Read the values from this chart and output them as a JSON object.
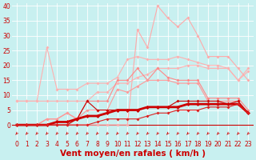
{
  "x": [
    0,
    1,
    2,
    3,
    4,
    5,
    6,
    7,
    8,
    9,
    10,
    11,
    12,
    13,
    14,
    15,
    16,
    17,
    18,
    19,
    20,
    21,
    22,
    23
  ],
  "background_color": "#c8f0f0",
  "grid_color": "#aadddd",
  "xlabel": "Vent moyen/en rafales ( km/h )",
  "series": [
    {
      "name": "envelope_upper_light",
      "color": "#ffb0b0",
      "linewidth": 0.8,
      "marker": "D",
      "markersize": 2.0,
      "y": [
        8,
        8,
        8,
        26,
        12,
        12,
        12,
        14,
        14,
        14,
        16,
        22,
        23,
        22,
        22,
        22,
        23,
        22,
        21,
        20,
        20,
        19,
        15,
        19
      ]
    },
    {
      "name": "envelope_lower_light",
      "color": "#ffb0b0",
      "linewidth": 0.8,
      "marker": "D",
      "markersize": 2.0,
      "y": [
        8,
        8,
        8,
        8,
        8,
        8,
        8,
        8,
        11,
        11,
        14,
        14,
        16,
        17,
        19,
        19,
        19,
        20,
        20,
        19,
        19,
        19,
        15,
        18
      ]
    },
    {
      "name": "peak_line",
      "color": "#ffaaaa",
      "linewidth": 0.8,
      "marker": "D",
      "markersize": 2.0,
      "y": [
        0,
        0,
        0,
        0,
        0,
        0,
        0,
        0,
        0,
        0,
        0,
        0,
        32,
        26,
        40,
        36,
        33,
        36,
        30,
        23,
        23,
        23,
        19,
        15
      ]
    },
    {
      "name": "mid_upper",
      "color": "#ff8888",
      "linewidth": 0.8,
      "marker": "D",
      "markersize": 2.0,
      "y": [
        0,
        0,
        0,
        2,
        2,
        4,
        2,
        8,
        8,
        8,
        15,
        15,
        19,
        15,
        19,
        16,
        15,
        15,
        15,
        9,
        9,
        9,
        9,
        5
      ]
    },
    {
      "name": "mid_lower",
      "color": "#ff9999",
      "linewidth": 0.8,
      "marker": "D",
      "markersize": 2.0,
      "y": [
        0,
        0,
        0,
        2,
        2,
        4,
        2,
        5,
        5,
        5,
        12,
        11,
        13,
        15,
        15,
        15,
        14,
        14,
        14,
        8,
        8,
        8,
        8,
        4
      ]
    },
    {
      "name": "thick_main",
      "color": "#cc0000",
      "linewidth": 2.0,
      "marker": "D",
      "markersize": 2.5,
      "y": [
        0,
        0,
        0,
        0,
        1,
        1,
        2,
        3,
        3,
        4,
        5,
        5,
        5,
        6,
        6,
        6,
        6,
        7,
        7,
        7,
        7,
        7,
        7,
        4
      ]
    },
    {
      "name": "dark_line1",
      "color": "#cc0000",
      "linewidth": 0.8,
      "marker": "D",
      "markersize": 2.0,
      "y": [
        0,
        0,
        0,
        0,
        0,
        0,
        2,
        8,
        5,
        5,
        5,
        5,
        5,
        6,
        6,
        6,
        8,
        8,
        8,
        8,
        8,
        7,
        8,
        4
      ]
    },
    {
      "name": "dark_line2",
      "color": "#dd2222",
      "linewidth": 0.8,
      "marker": "D",
      "markersize": 2.0,
      "y": [
        0,
        0,
        0,
        0,
        0,
        0,
        0,
        0,
        1,
        2,
        2,
        2,
        2,
        3,
        4,
        4,
        5,
        5,
        5,
        6,
        6,
        6,
        7,
        4
      ]
    }
  ],
  "arrow_color": "#cc0000",
  "ylim": [
    -5,
    41
  ],
  "xlim": [
    -0.5,
    23.5
  ],
  "yticks": [
    0,
    5,
    10,
    15,
    20,
    25,
    30,
    35,
    40
  ],
  "xticks": [
    0,
    1,
    2,
    3,
    4,
    5,
    6,
    7,
    8,
    9,
    10,
    11,
    12,
    13,
    14,
    15,
    16,
    17,
    18,
    19,
    20,
    21,
    22,
    23
  ],
  "tick_fontsize": 5.5,
  "xlabel_fontsize": 7.5,
  "tick_color": "#cc0000"
}
